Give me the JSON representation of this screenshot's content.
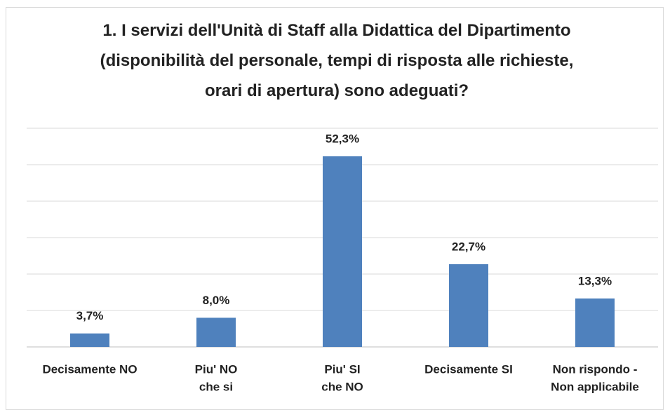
{
  "chart_data": {
    "type": "bar",
    "title": "1. I servizi dell'Unità di Staff alla Didattica del Dipartimento (disponibilità del personale, tempi di risposta alle richieste, orari di apertura) sono adeguati?",
    "categories": [
      [
        "Decisamente NO"
      ],
      [
        "Piu' NO",
        "che si"
      ],
      [
        "Piu' SI",
        "che NO"
      ],
      [
        "Decisamente SI"
      ],
      [
        "Non rispondo -",
        "Non applicabile"
      ]
    ],
    "values": [
      3.7,
      8.0,
      52.3,
      22.7,
      13.3
    ],
    "value_labels": [
      "3,7%",
      "8,0%",
      "52,3%",
      "22,7%",
      "13,3%"
    ],
    "color": "#4f81bd",
    "ylim": [
      0,
      60
    ],
    "yticks": [
      0,
      10,
      20,
      30,
      40,
      50,
      60
    ],
    "grid": true
  }
}
